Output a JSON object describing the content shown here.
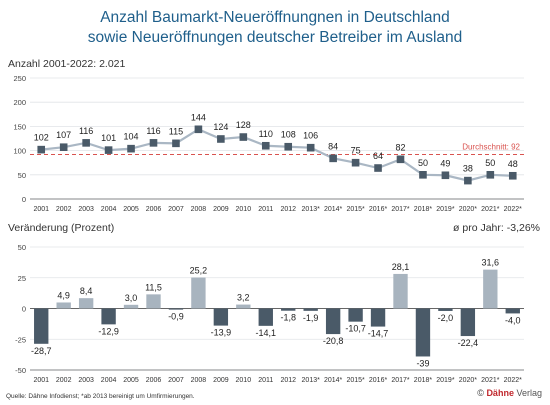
{
  "header": {
    "title_line1": "Anzahl Baumarkt-Neueröffnungnen in Deutschland",
    "title_line2": "sowie Neueröffnungen deutscher Betreiber im Ausland"
  },
  "chart_data": [
    {
      "type": "line",
      "subtitle": "Anzahl 2001-2022: 2.021",
      "categories": [
        "2001",
        "2002",
        "2003",
        "2004",
        "2005",
        "2006",
        "2007",
        "2008",
        "2009",
        "2010",
        "2011",
        "2012",
        "2013*",
        "2014*",
        "2015*",
        "2016*",
        "2017*",
        "2018*",
        "2019*",
        "2020*",
        "2021*",
        "2022*"
      ],
      "values": [
        102,
        107,
        116,
        101,
        104,
        116,
        115,
        144,
        124,
        128,
        110,
        108,
        106,
        84,
        75,
        64,
        82,
        50,
        49,
        38,
        50,
        48
      ],
      "yticks": [
        0,
        50,
        100,
        150,
        200,
        250
      ],
      "ylim": [
        0,
        250
      ],
      "reference_line": {
        "label": "Durchschnitt: 92",
        "value": 92,
        "color": "#d9534f"
      },
      "colors": {
        "line": "#aab7c4",
        "marker": "#4a5a68"
      }
    },
    {
      "type": "bar",
      "subtitle": "Veränderung (Prozent)",
      "annotation": "ø pro Jahr: -3,26%",
      "categories": [
        "2001",
        "2002",
        "2003",
        "2004",
        "2005",
        "2006",
        "2007",
        "2008",
        "2009",
        "2010",
        "2011",
        "2012",
        "2013*",
        "2014*",
        "2015*",
        "2016*",
        "2017*",
        "2018*",
        "2019*",
        "2020*",
        "2021*",
        "2022*"
      ],
      "values": [
        -28.7,
        4.9,
        8.4,
        -12.9,
        3.0,
        11.5,
        -0.9,
        25.2,
        -13.9,
        3.2,
        -14.1,
        -1.8,
        -1.9,
        -20.8,
        -10.7,
        -14.7,
        28.1,
        -39.0,
        -2.0,
        -22.4,
        31.6,
        -4.0
      ],
      "labels": [
        "-28,7",
        "4,9",
        "8,4",
        "-12,9",
        "3,0",
        "11,5",
        "-0,9",
        "25,2",
        "-13,9",
        "3,2",
        "-14,1",
        "-1,8",
        "-1,9",
        "-20,8",
        "-10,7",
        "-14,7",
        "28,1",
        "-39",
        "-2,0",
        "-22,4",
        "31,6",
        "-4,0"
      ],
      "yticks": [
        -50,
        -25,
        0,
        25,
        50
      ],
      "ylim": [
        -50,
        50
      ],
      "colors": {
        "positive": "#a8b4bf",
        "negative": "#4a5a68"
      }
    }
  ],
  "footer": {
    "source": "Quelle: Dähne Infodienst; *ab 2013 bereinigt um Umfirmierungen.",
    "brand_symbol": "©",
    "brand_name": "Dähne",
    "brand_suffix": "Verlag"
  }
}
